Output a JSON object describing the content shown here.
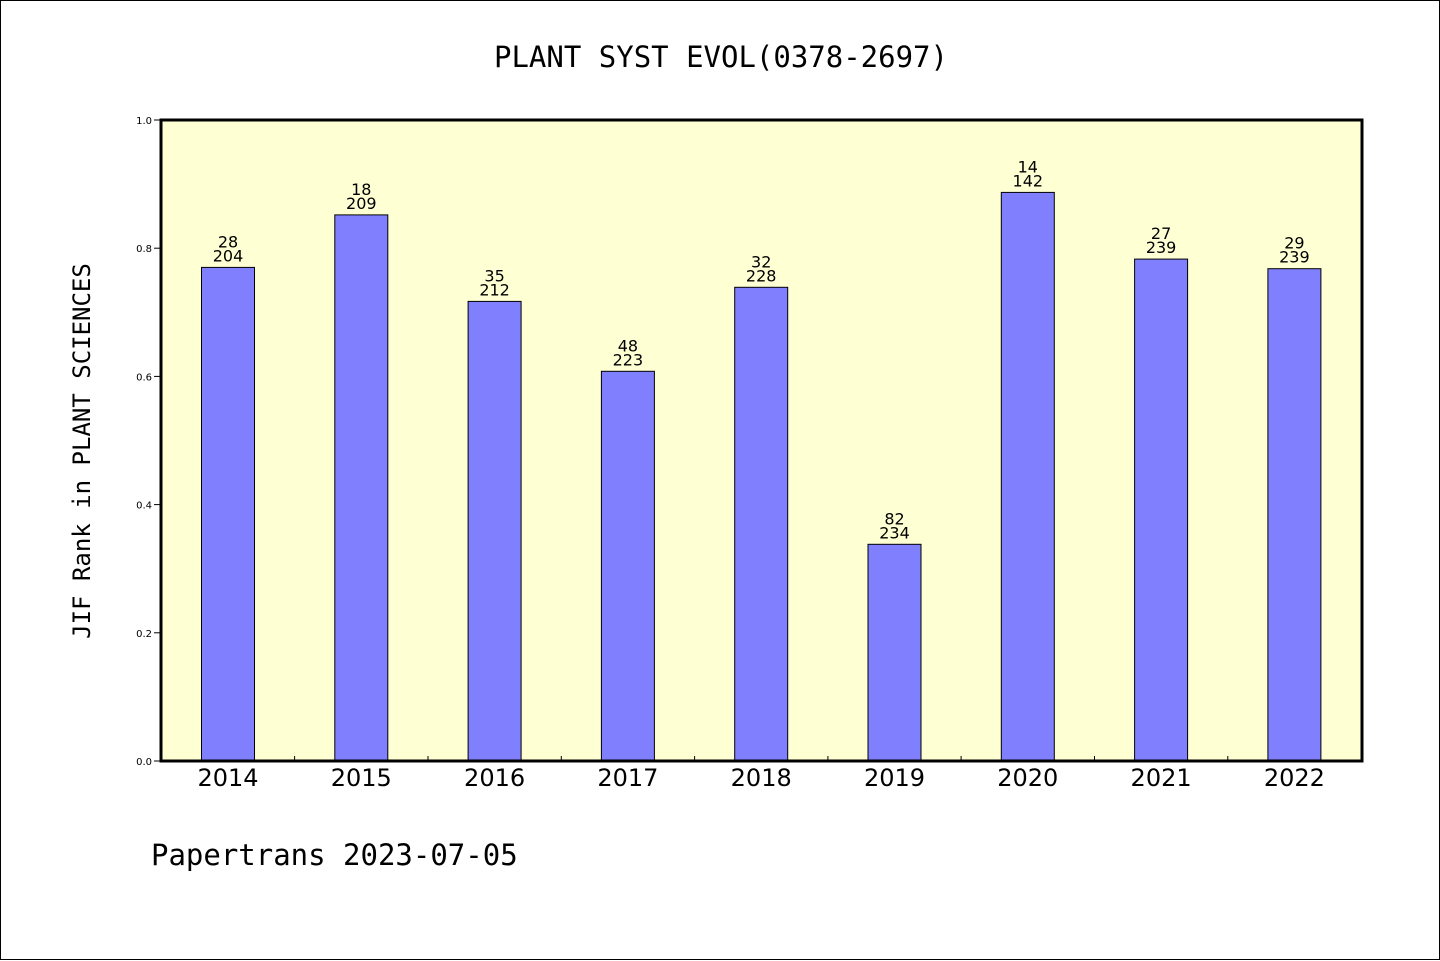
{
  "chart_data": {
    "type": "bar",
    "title": "PLANT SYST EVOL(0378-2697)",
    "ylabel": "JIF Rank in PLANT SCIENCES",
    "xlabel": "",
    "ylim": [
      0,
      1.0
    ],
    "yticks": [
      "0.0",
      "0.2",
      "0.4",
      "0.6",
      "0.8",
      "1.0"
    ],
    "ytick_values": [
      0,
      0.2,
      0.4,
      0.6,
      0.8,
      1.0
    ],
    "categories": [
      "2014",
      "2015",
      "2016",
      "2017",
      "2018",
      "2019",
      "2020",
      "2021",
      "2022"
    ],
    "values": [
      0.77,
      0.852,
      0.717,
      0.608,
      0.739,
      0.338,
      0.887,
      0.783,
      0.768
    ],
    "rank": [
      "28",
      "18",
      "35",
      "48",
      "32",
      "82",
      "14",
      "27",
      "29"
    ],
    "total": [
      "204",
      "209",
      "212",
      "223",
      "228",
      "234",
      "142",
      "239",
      "239"
    ],
    "grid": false,
    "colors": {
      "bar_fill": "#8080ff",
      "bar_stroke": "#000000",
      "plot_background": "#ffffd4"
    }
  },
  "footer": "Papertrans 2023-07-05"
}
